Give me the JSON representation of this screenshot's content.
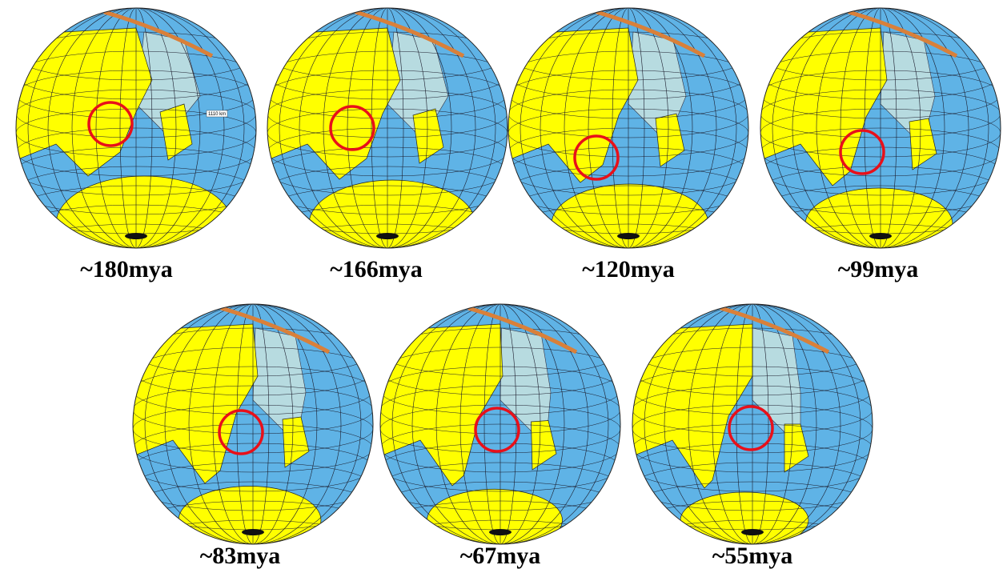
{
  "title_panels": [
    {
      "label": "~180mya",
      "annotation": "1110 km"
    },
    {
      "label": "~166mya"
    },
    {
      "label": "~120mya"
    },
    {
      "label": "~99mya"
    },
    {
      "label": "~83mya"
    },
    {
      "label": "~67mya"
    },
    {
      "label": "~55mya"
    }
  ]
}
